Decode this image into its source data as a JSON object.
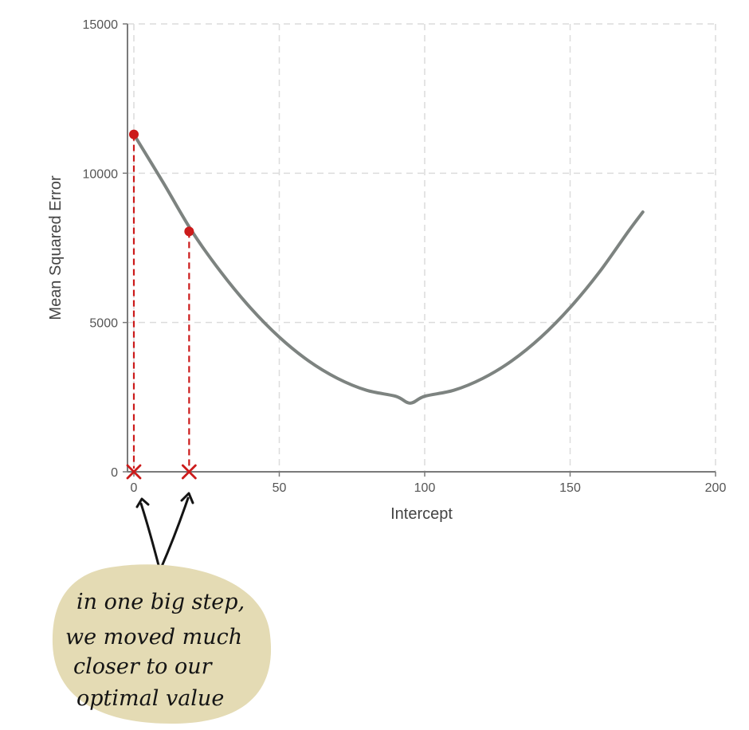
{
  "chart_data": {
    "type": "line",
    "title": "",
    "xlabel": "Intercept",
    "ylabel": "Mean Squared Error",
    "xlim": [
      0,
      200
    ],
    "ylim": [
      0,
      15000
    ],
    "xticks": [
      0,
      50,
      100,
      150,
      200
    ],
    "yticks": [
      0,
      5000,
      10000,
      15000
    ],
    "x_tick_labels": [
      "0",
      "50",
      "100",
      "150",
      "200"
    ],
    "y_tick_labels": [
      "0",
      "5000",
      "10000",
      "15000"
    ],
    "grid": true,
    "series": [
      {
        "x": [
          0,
          10,
          20,
          30,
          40,
          50,
          60,
          70,
          80,
          90,
          95,
          100,
          110,
          120,
          130,
          140,
          150,
          160,
          170,
          175
        ],
        "y": [
          11300,
          9700,
          8050,
          6680,
          5500,
          4510,
          3720,
          3130,
          2730,
          2530,
          2300,
          2530,
          2730,
          3130,
          3720,
          4510,
          5500,
          6680,
          8050,
          8700
        ],
        "color": "#7d8380"
      }
    ],
    "steps": [
      {
        "x": 0,
        "y": 11300
      },
      {
        "x": 19,
        "y": 8050
      }
    ],
    "step_color": "#cc1b1b",
    "note_color": "#e4dbb4"
  },
  "annotation": {
    "lines": [
      "in one big step,",
      "we moved much",
      "closer to our",
      "optimal value"
    ]
  }
}
